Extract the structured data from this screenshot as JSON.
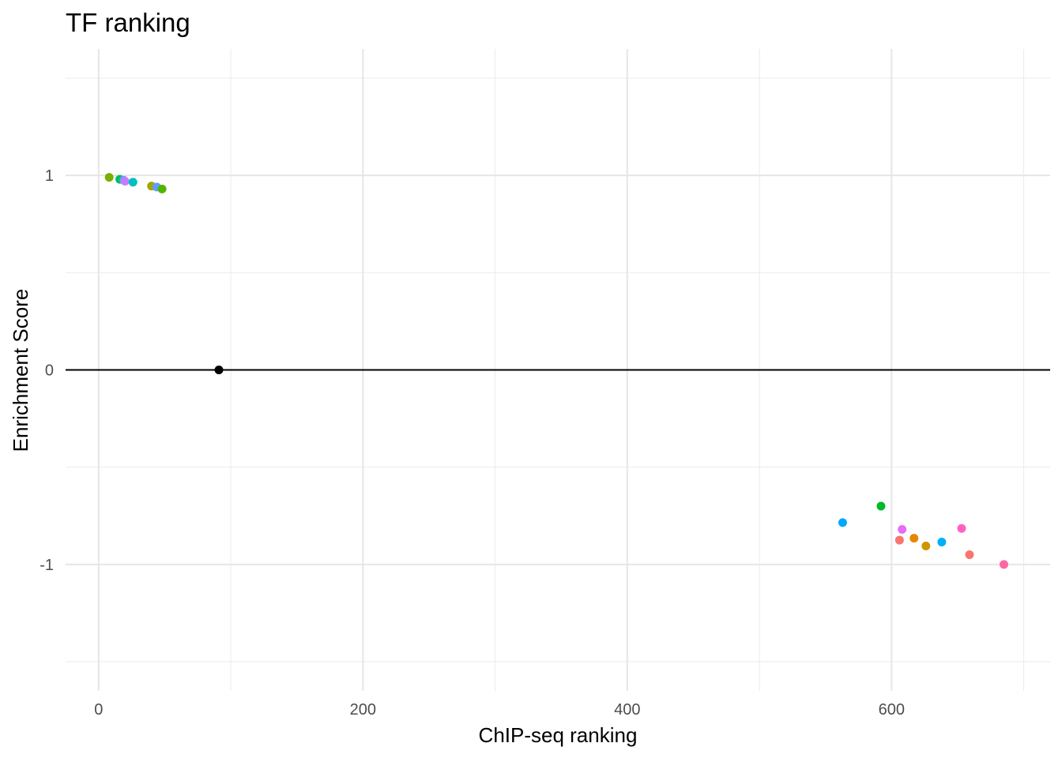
{
  "chart_data": {
    "type": "scatter",
    "title": "TF ranking",
    "xlabel": "ChIP-seq ranking",
    "ylabel": "Enrichment Score",
    "xlim": [
      -25,
      720
    ],
    "ylim": [
      -1.65,
      1.65
    ],
    "x_ticks": [
      0,
      200,
      400,
      600
    ],
    "x_tick_labels": [
      "0",
      "200",
      "400",
      "600"
    ],
    "x_minor_ticks": [
      100,
      300,
      500,
      700
    ],
    "y_ticks": [
      -1,
      0,
      1
    ],
    "y_tick_labels": [
      "-1",
      "0",
      "1"
    ],
    "y_minor_ticks": [
      -1.5,
      -0.5,
      0.5,
      1.5
    ],
    "grid": true,
    "legend": "none",
    "reference_line": {
      "y": 0,
      "color": "#000000"
    },
    "points": [
      {
        "x": 8,
        "y": 0.99,
        "color": "#7CAE00"
      },
      {
        "x": 16,
        "y": 0.98,
        "color": "#00BE67"
      },
      {
        "x": 19,
        "y": 0.975,
        "color": "#619CFF"
      },
      {
        "x": 20,
        "y": 0.97,
        "color": "#C77CFF"
      },
      {
        "x": 26,
        "y": 0.965,
        "color": "#00BFC4"
      },
      {
        "x": 40,
        "y": 0.945,
        "color": "#A3A500"
      },
      {
        "x": 44,
        "y": 0.94,
        "color": "#619CFF"
      },
      {
        "x": 48,
        "y": 0.93,
        "color": "#53B400"
      },
      {
        "x": 91,
        "y": 0.0,
        "color": "#000000"
      },
      {
        "x": 563,
        "y": -0.785,
        "color": "#00A9FF"
      },
      {
        "x": 592,
        "y": -0.7,
        "color": "#00B929"
      },
      {
        "x": 606,
        "y": -0.875,
        "color": "#F8766D"
      },
      {
        "x": 608,
        "y": -0.82,
        "color": "#E76BF3"
      },
      {
        "x": 617,
        "y": -0.865,
        "color": "#E58700"
      },
      {
        "x": 626,
        "y": -0.905,
        "color": "#C99800"
      },
      {
        "x": 638,
        "y": -0.885,
        "color": "#00B0F6"
      },
      {
        "x": 653,
        "y": -0.815,
        "color": "#FF61C3"
      },
      {
        "x": 659,
        "y": -0.95,
        "color": "#F8766D"
      },
      {
        "x": 685,
        "y": -1.0,
        "color": "#FF67A4"
      }
    ]
  }
}
